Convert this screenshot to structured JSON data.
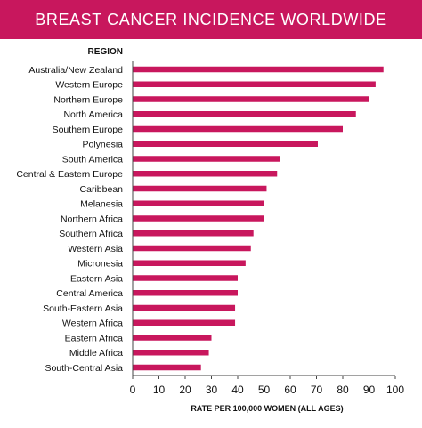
{
  "title": "BREAST CANCER INCIDENCE WORLDWIDE",
  "colors": {
    "title_background": "#c8175d",
    "bar": "#c8175d",
    "axis": "#444444",
    "text": "#111111"
  },
  "chart_data": {
    "type": "bar",
    "orientation": "horizontal",
    "title": "BREAST CANCER INCIDENCE WORLDWIDE",
    "category_header": "REGION",
    "xlabel": "RATE PER 100,000 WOMEN (ALL AGES)",
    "xlim": [
      0,
      100
    ],
    "xticks": [
      0,
      10,
      20,
      30,
      40,
      50,
      60,
      70,
      80,
      90,
      100
    ],
    "grid": false,
    "categories": [
      "Australia/New Zealand",
      "Western Europe",
      "Northern Europe",
      "North America",
      "Southern Europe",
      "Polynesia",
      "South America",
      "Central & Eastern Europe",
      "Caribbean",
      "Melanesia",
      "Northern Africa",
      "Southern Africa",
      "Western Asia",
      "Micronesia",
      "Eastern Asia",
      "Central America",
      "South-Eastern Asia",
      "Western Africa",
      "Eastern Africa",
      "Middle Africa",
      "South-Central Asia"
    ],
    "values": [
      95.5,
      92.5,
      90,
      85,
      80,
      70.5,
      56,
      55,
      51,
      50,
      50,
      46,
      45,
      43,
      40,
      40,
      39,
      39,
      30,
      29,
      26
    ]
  }
}
